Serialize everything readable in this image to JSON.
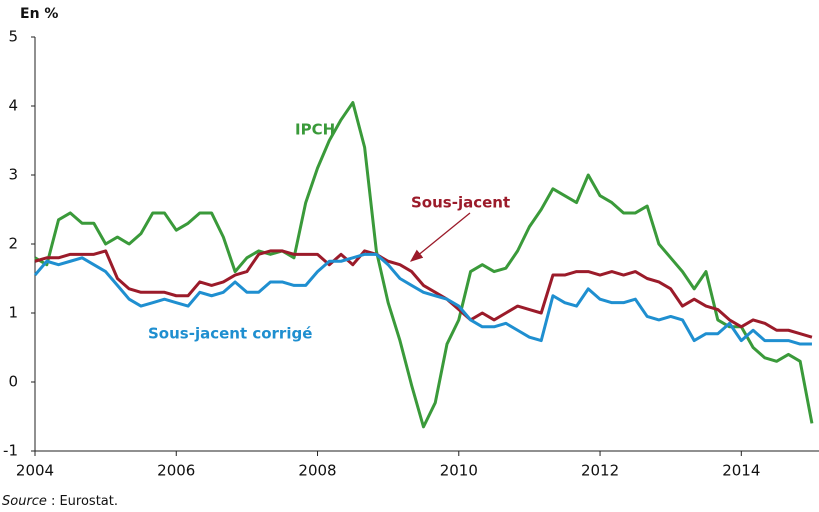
{
  "chart_data": {
    "type": "line",
    "title": "En %",
    "source_label": "Source",
    "source": ": Eurostat.",
    "x": [
      2004,
      2004.167,
      2004.333,
      2004.5,
      2004.667,
      2004.833,
      2005,
      2005.167,
      2005.333,
      2005.5,
      2005.667,
      2005.833,
      2006,
      2006.167,
      2006.333,
      2006.5,
      2006.667,
      2006.833,
      2007,
      2007.167,
      2007.333,
      2007.5,
      2007.667,
      2007.833,
      2008,
      2008.167,
      2008.333,
      2008.5,
      2008.667,
      2008.833,
      2009,
      2009.167,
      2009.333,
      2009.5,
      2009.667,
      2009.833,
      2010,
      2010.167,
      2010.333,
      2010.5,
      2010.667,
      2010.833,
      2011,
      2011.167,
      2011.333,
      2011.5,
      2011.667,
      2011.833,
      2012,
      2012.167,
      2012.333,
      2012.5,
      2012.667,
      2012.833,
      2013,
      2013.167,
      2013.333,
      2013.5,
      2013.667,
      2013.833,
      2014,
      2014.167,
      2014.333,
      2014.5,
      2014.667,
      2014.833,
      2015
    ],
    "series": [
      {
        "name": "IPCH",
        "color": "#3a9a3a",
        "values": [
          1.8,
          1.7,
          2.35,
          2.45,
          2.3,
          2.3,
          2.0,
          2.1,
          2.0,
          2.15,
          2.45,
          2.45,
          2.2,
          2.3,
          2.45,
          2.45,
          2.1,
          1.6,
          1.8,
          1.9,
          1.85,
          1.9,
          1.8,
          2.6,
          3.1,
          3.5,
          3.8,
          4.05,
          3.4,
          1.9,
          1.15,
          0.6,
          -0.05,
          -0.65,
          -0.3,
          0.55,
          0.9,
          1.6,
          1.7,
          1.6,
          1.65,
          1.9,
          2.25,
          2.5,
          2.8,
          2.7,
          2.6,
          3.0,
          2.7,
          2.6,
          2.45,
          2.45,
          2.55,
          2.0,
          1.8,
          1.6,
          1.35,
          1.6,
          0.9,
          0.8,
          0.8,
          0.5,
          0.35,
          0.3,
          0.4,
          0.3,
          -0.6
        ]
      },
      {
        "name": "Sous-jacent",
        "color": "#9b1b2a",
        "values": [
          1.75,
          1.8,
          1.8,
          1.85,
          1.85,
          1.85,
          1.9,
          1.5,
          1.35,
          1.3,
          1.3,
          1.3,
          1.25,
          1.25,
          1.45,
          1.4,
          1.45,
          1.55,
          1.6,
          1.85,
          1.9,
          1.9,
          1.85,
          1.85,
          1.85,
          1.7,
          1.85,
          1.7,
          1.9,
          1.85,
          1.75,
          1.7,
          1.6,
          1.4,
          1.3,
          1.2,
          1.05,
          0.9,
          1.0,
          0.9,
          1.0,
          1.1,
          1.05,
          1.0,
          1.55,
          1.55,
          1.6,
          1.6,
          1.55,
          1.6,
          1.55,
          1.6,
          1.5,
          1.45,
          1.35,
          1.1,
          1.2,
          1.1,
          1.05,
          0.9,
          0.8,
          0.9,
          0.85,
          0.75,
          0.75,
          0.7,
          0.65
        ]
      },
      {
        "name": "Sous-jacent corrigé",
        "color": "#1f8fd0",
        "values": [
          1.55,
          1.75,
          1.7,
          1.75,
          1.8,
          1.7,
          1.6,
          1.4,
          1.2,
          1.1,
          1.15,
          1.2,
          1.15,
          1.1,
          1.3,
          1.25,
          1.3,
          1.45,
          1.3,
          1.3,
          1.45,
          1.45,
          1.4,
          1.4,
          1.6,
          1.75,
          1.75,
          1.8,
          1.85,
          1.85,
          1.7,
          1.5,
          1.4,
          1.3,
          1.25,
          1.2,
          1.1,
          0.9,
          0.8,
          0.8,
          0.85,
          0.75,
          0.65,
          0.6,
          1.25,
          1.15,
          1.1,
          1.35,
          1.2,
          1.15,
          1.15,
          1.2,
          0.95,
          0.9,
          0.95,
          0.9,
          0.6,
          0.7,
          0.7,
          0.85,
          0.6,
          0.75,
          0.6,
          0.6,
          0.6,
          0.55,
          0.55
        ]
      }
    ],
    "xlim": [
      2004,
      2015.1
    ],
    "xticks": [
      2004,
      2006,
      2008,
      2010,
      2012,
      2014
    ],
    "ylim": [
      -1,
      5
    ],
    "yticks": [
      -1,
      0,
      1,
      2,
      3,
      4,
      5
    ],
    "grid": false
  }
}
